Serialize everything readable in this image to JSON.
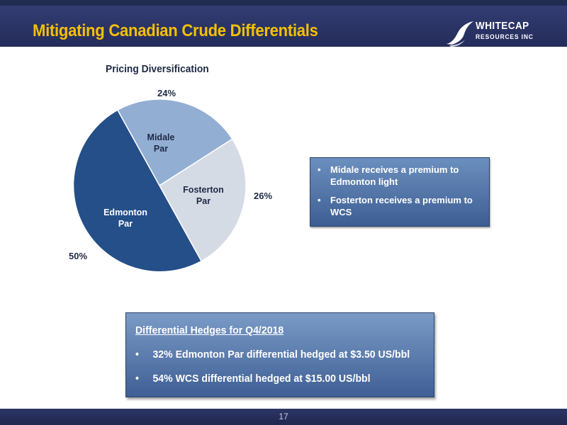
{
  "header": {
    "title": "Mitigating Canadian Crude Differentials",
    "logo": {
      "line1": "WHITECAP",
      "line2": "RESOURCES INC"
    }
  },
  "chart_data": {
    "type": "pie",
    "title": "Pricing Diversification",
    "slices": [
      {
        "label": "Midale\nPar",
        "value": 24,
        "value_label": "24%",
        "color": "#93aed3"
      },
      {
        "label": "Fosterton\nPar",
        "value": 26,
        "value_label": "26%",
        "color": "#d5dbe5"
      },
      {
        "label": "Edmonton\nPar",
        "value": 50,
        "value_label": "50%",
        "color": "#244f88"
      }
    ],
    "start_angle_deg": -29,
    "direction": "clockwise"
  },
  "notes": {
    "items": [
      "Midale receives a premium to Edmonton light",
      "Fosterton receives a premium to WCS"
    ]
  },
  "hedges": {
    "title": "Differential Hedges for Q4/2018",
    "items": [
      "32% Edmonton Par differential hedged at $3.50 US/bbl",
      "54% WCS differential hedged at $15.00 US/bbl"
    ]
  },
  "bullet_glyph": "•",
  "footer": {
    "page_number": "17"
  },
  "colors": {
    "header_bg": "#2a3365",
    "title": "#f6c000",
    "box_top": "#7a9bc6",
    "box_bottom": "#3f5f95"
  }
}
